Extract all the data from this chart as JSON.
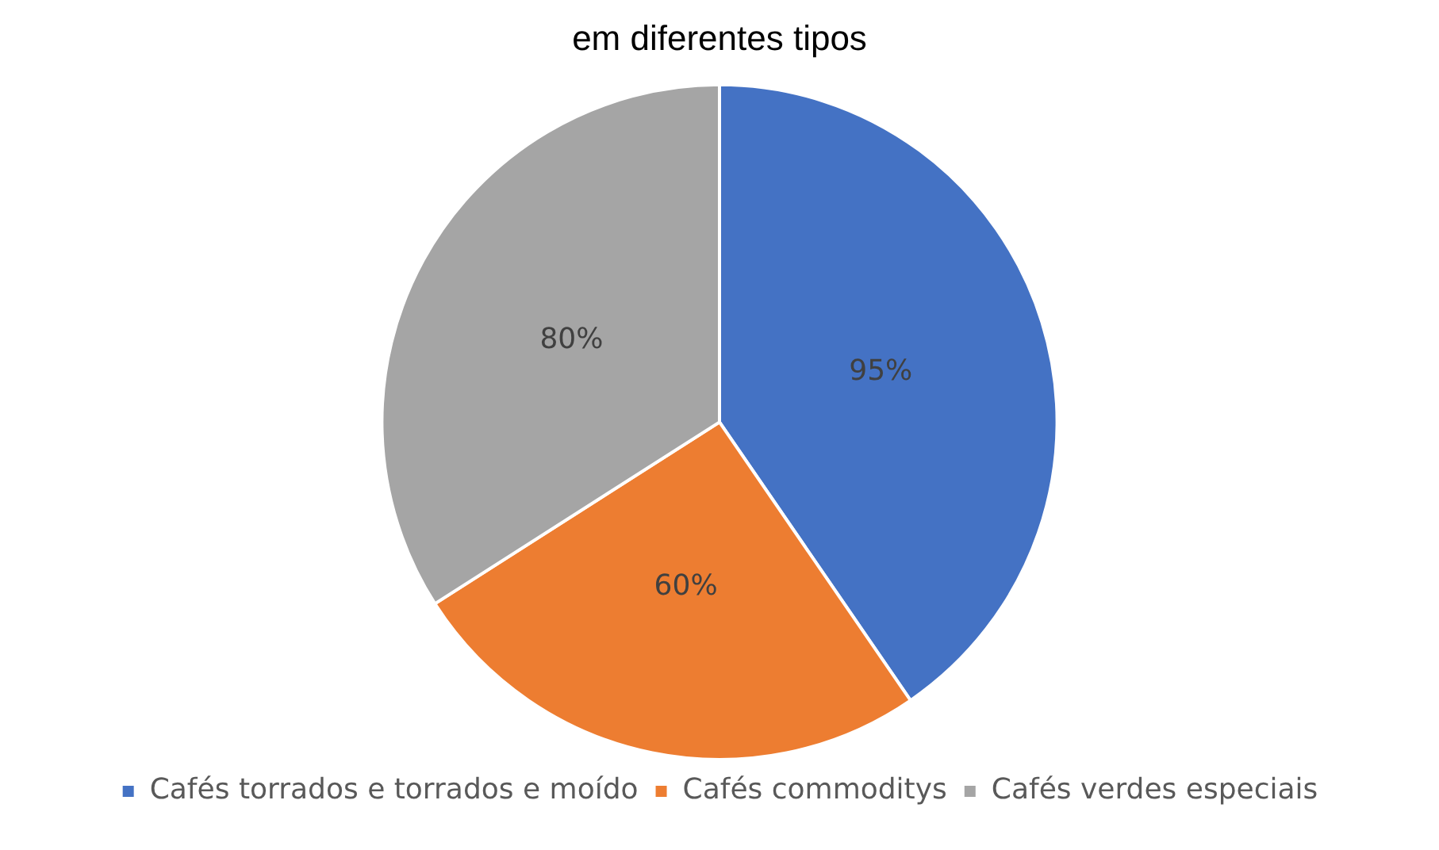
{
  "chart_data": {
    "type": "pie",
    "title": "em diferentes tipos",
    "categories": [
      "Cafés torrados e torrados e moído",
      "Cafés commoditys",
      "Cafés verdes especiais"
    ],
    "values": [
      95,
      60,
      80
    ],
    "colors": [
      "#4472c4",
      "#ed7d31",
      "#a5a5a5"
    ],
    "value_labels": [
      "95%",
      "60%",
      "80%"
    ],
    "legend": "bottom"
  }
}
